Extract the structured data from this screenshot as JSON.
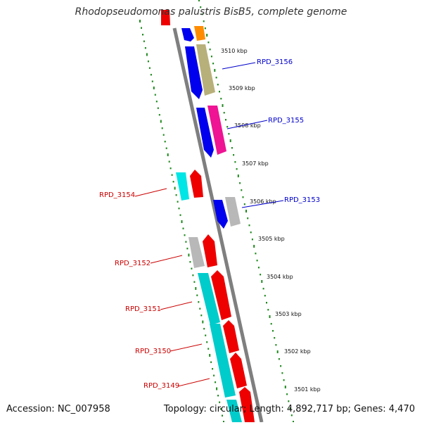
{
  "title": "Rhodopseudomonas palustris BisB5, complete genome",
  "footer": {
    "accession": "Accession: NC_007958",
    "summary": "Topology: circular; Length: 4,892,717 bp; Genes: 4,470"
  },
  "colors": {
    "backbone": "#7f7f7f",
    "tick_dots": "#1f8a1f",
    "label_forward": "#0000cc",
    "label_reverse": "#cc0000",
    "blue": "#0000ee",
    "red": "#ee0000",
    "cyan": "#00cccc",
    "gray": "#b8b8b8",
    "olive": "#b8b07a",
    "magenta": "#ee1493",
    "orange": "#ff8c00",
    "aqua": "#00e5e5"
  },
  "scale_ticks": [
    {
      "kbp": 3510,
      "label": "3510 kbp"
    },
    {
      "kbp": 3509,
      "label": "3509 kbp"
    },
    {
      "kbp": 3508,
      "label": "3508 kbp"
    },
    {
      "kbp": 3507,
      "label": "3507 kbp"
    },
    {
      "kbp": 3506,
      "label": "3506 kbp"
    },
    {
      "kbp": 3505,
      "label": "3505 kbp"
    },
    {
      "kbp": 3504,
      "label": "3504 kbp"
    },
    {
      "kbp": 3503,
      "label": "3503 kbp"
    },
    {
      "kbp": 3502,
      "label": "3502 kbp"
    },
    {
      "kbp": 3501,
      "label": "3501 kbp"
    }
  ],
  "gene_labels": [
    {
      "name": "RPD_3156",
      "strand": "forward"
    },
    {
      "name": "RPD_3155",
      "strand": "forward"
    },
    {
      "name": "RPD_3153",
      "strand": "forward"
    },
    {
      "name": "RPD_3154",
      "strand": "reverse"
    },
    {
      "name": "RPD_3152",
      "strand": "reverse"
    },
    {
      "name": "RPD_3151",
      "strand": "reverse"
    },
    {
      "name": "RPD_3150",
      "strand": "reverse"
    },
    {
      "name": "RPD_3149",
      "strand": "reverse"
    }
  ]
}
